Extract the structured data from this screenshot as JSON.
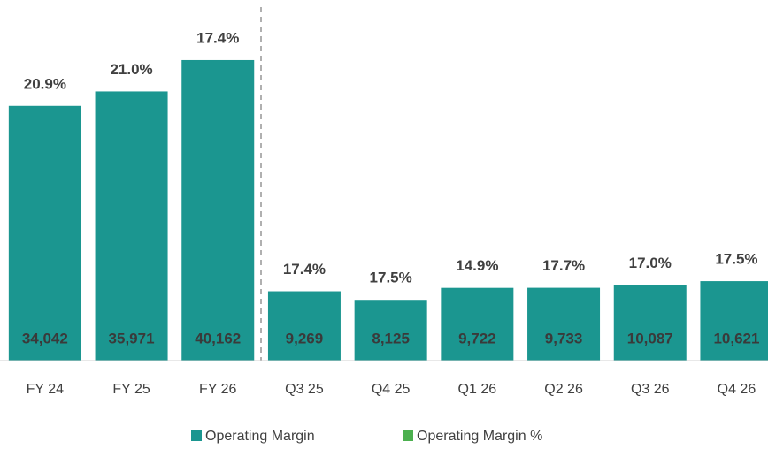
{
  "chart_data": {
    "type": "bar",
    "categories": [
      "FY 24",
      "FY 25",
      "FY 26",
      "Q3 25",
      "Q4 25",
      "Q1 26",
      "Q2 26",
      "Q3 26",
      "Q4 26"
    ],
    "series": [
      {
        "name": "Operating Margin",
        "color": "#1b9690",
        "values": [
          34042,
          35971,
          40162,
          9269,
          8125,
          9722,
          9733,
          10087,
          10621
        ],
        "value_labels": [
          "34,042",
          "35,971",
          "40,162",
          "9,269",
          "8,125",
          "9,722",
          "9,733",
          "10,087",
          "10,621"
        ]
      },
      {
        "name": "Operating Margin %",
        "color": "#4cb04f",
        "values": [
          20.9,
          21.0,
          17.4,
          17.4,
          17.5,
          14.9,
          17.7,
          17.0,
          17.5
        ],
        "value_labels": [
          "20.9%",
          "21.0%",
          "17.4%",
          "17.4%",
          "17.5%",
          "14.9%",
          "17.7%",
          "17.0%",
          "17.5%"
        ]
      }
    ],
    "ylim": [
      0,
      45000
    ]
  }
}
